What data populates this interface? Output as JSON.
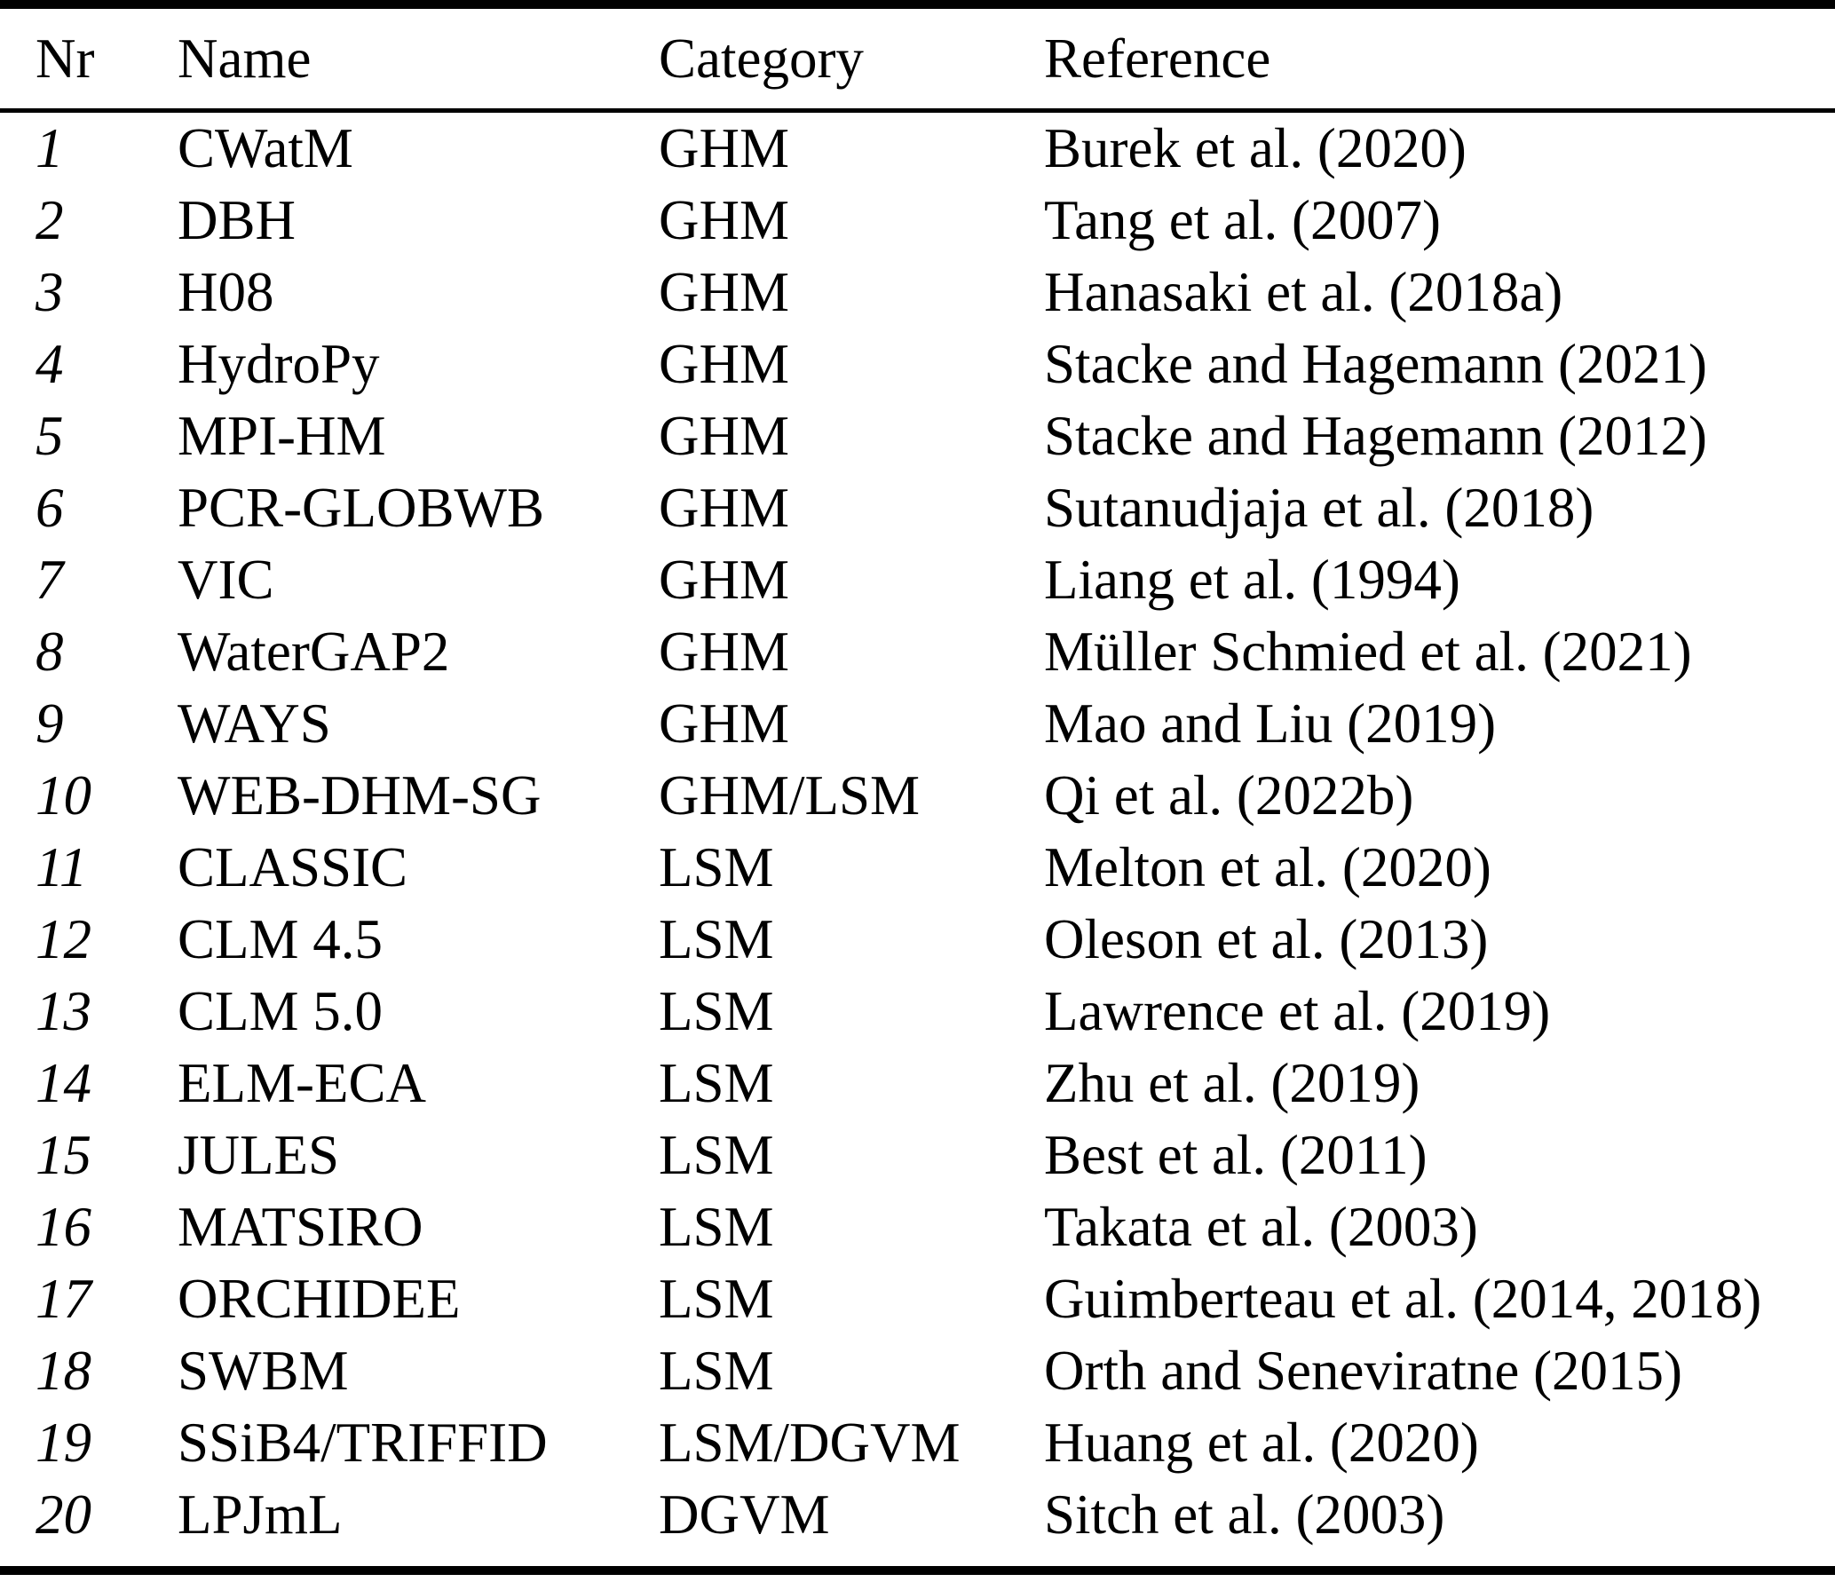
{
  "table": {
    "columns": [
      "Nr",
      "Name",
      "Category",
      "Reference"
    ],
    "rows": [
      {
        "nr": "1",
        "name": "CWatM",
        "category": "GHM",
        "reference": "Burek et al. (2020)"
      },
      {
        "nr": "2",
        "name": "DBH",
        "category": "GHM",
        "reference": "Tang et al. (2007)"
      },
      {
        "nr": "3",
        "name": "H08",
        "category": "GHM",
        "reference": "Hanasaki et al. (2018a)"
      },
      {
        "nr": "4",
        "name": "HydroPy",
        "category": "GHM",
        "reference": "Stacke and Hagemann (2021)"
      },
      {
        "nr": "5",
        "name": "MPI-HM",
        "category": "GHM",
        "reference": "Stacke and Hagemann (2012)"
      },
      {
        "nr": "6",
        "name": "PCR-GLOBWB",
        "category": "GHM",
        "reference": "Sutanudjaja et al. (2018)"
      },
      {
        "nr": "7",
        "name": "VIC",
        "category": "GHM",
        "reference": "Liang et al. (1994)"
      },
      {
        "nr": "8",
        "name": "WaterGAP2",
        "category": "GHM",
        "reference": "Müller Schmied et al. (2021)"
      },
      {
        "nr": "9",
        "name": "WAYS",
        "category": "GHM",
        "reference": "Mao and Liu (2019)"
      },
      {
        "nr": "10",
        "name": "WEB-DHM-SG",
        "category": "GHM/LSM",
        "reference": "Qi et al. (2022b)"
      },
      {
        "nr": "11",
        "name": "CLASSIC",
        "category": "LSM",
        "reference": "Melton et al. (2020)"
      },
      {
        "nr": "12",
        "name": "CLM 4.5",
        "category": "LSM",
        "reference": "Oleson et al. (2013)"
      },
      {
        "nr": "13",
        "name": "CLM 5.0",
        "category": "LSM",
        "reference": "Lawrence et al. (2019)"
      },
      {
        "nr": "14",
        "name": "ELM-ECA",
        "category": "LSM",
        "reference": "Zhu et al. (2019)"
      },
      {
        "nr": "15",
        "name": "JULES",
        "category": "LSM",
        "reference": "Best et al. (2011)"
      },
      {
        "nr": "16",
        "name": "MATSIRO",
        "category": "LSM",
        "reference": "Takata et al. (2003)"
      },
      {
        "nr": "17",
        "name": "ORCHIDEE",
        "category": "LSM",
        "reference": "Guimberteau et al. (2014, 2018)"
      },
      {
        "nr": "18",
        "name": "SWBM",
        "category": "LSM",
        "reference": "Orth and Seneviratne (2015)"
      },
      {
        "nr": "19",
        "name": "SSiB4/TRIFFID",
        "category": "LSM/DGVM",
        "reference": "Huang et al. (2020)"
      },
      {
        "nr": "20",
        "name": "LPJmL",
        "category": "DGVM",
        "reference": "Sitch et al. (2003)"
      }
    ]
  },
  "colors": {
    "text": "#000000",
    "background": "#ffffff",
    "rule": "#000000"
  }
}
